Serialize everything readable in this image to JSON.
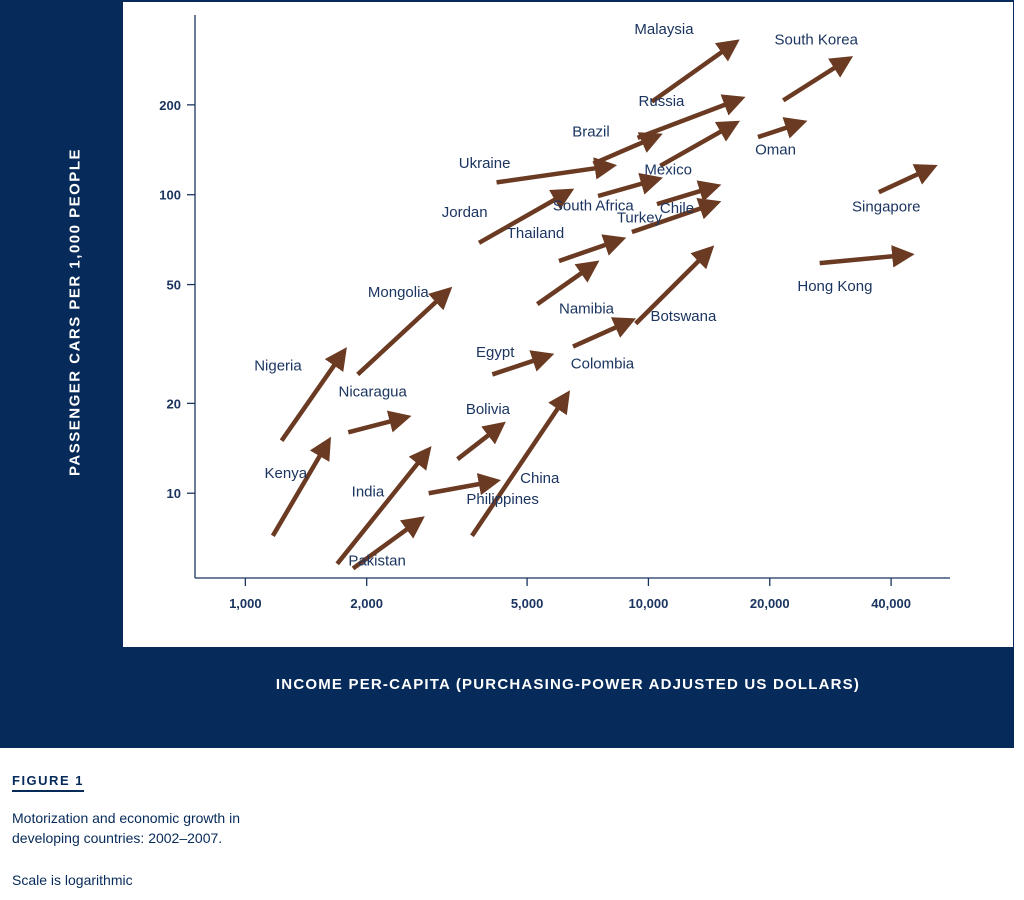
{
  "figure": {
    "label": "FIGURE 1",
    "caption": "Motorization and economic growth in developing countries: 2002–2007.",
    "note": "Scale is logarithmic"
  },
  "chart_data": {
    "type": "scatter",
    "title": "",
    "xlabel": "INCOME PER-CAPITA (PURCHASING-POWER ADJUSTED US DOLLARS)",
    "ylabel": "PASSENGER CARS PER 1,000 PEOPLE",
    "x_scale": "log",
    "y_scale": "log",
    "xlim": [
      750,
      56000
    ],
    "ylim": [
      5.2,
      400
    ],
    "x_ticks": [
      {
        "value": 1000,
        "label": "1,000"
      },
      {
        "value": 2000,
        "label": "2,000"
      },
      {
        "value": 5000,
        "label": "5,000"
      },
      {
        "value": 10000,
        "label": "10,000"
      },
      {
        "value": 20000,
        "label": "20,000"
      },
      {
        "value": 40000,
        "label": "40,000"
      }
    ],
    "y_ticks": [
      {
        "value": 10,
        "label": "10"
      },
      {
        "value": 20,
        "label": "20"
      },
      {
        "value": 50,
        "label": "50"
      },
      {
        "value": 100,
        "label": "100"
      },
      {
        "value": 200,
        "label": "200"
      }
    ],
    "arrow_color": "#6b3a22",
    "series": [
      {
        "name": "Malaysia",
        "x0": 10200,
        "y0": 205,
        "x1": 16500,
        "y1": 325
      },
      {
        "name": "South Korea",
        "x0": 21600,
        "y0": 207,
        "x1": 31500,
        "y1": 286
      },
      {
        "name": "Russia",
        "x0": 9400,
        "y0": 155,
        "x1": 17000,
        "y1": 210
      },
      {
        "name": "Brazil",
        "x0": 7300,
        "y0": 127,
        "x1": 10600,
        "y1": 158
      },
      {
        "name": "Oman",
        "x0": 18700,
        "y0": 156,
        "x1": 24200,
        "y1": 175
      },
      {
        "name": "Mexico",
        "x0": 10700,
        "y0": 125,
        "x1": 16500,
        "y1": 174
      },
      {
        "name": "Ukraine",
        "x0": 4200,
        "y0": 110,
        "x1": 8150,
        "y1": 125
      },
      {
        "name": "South Africa",
        "x0": 7500,
        "y0": 99,
        "x1": 10600,
        "y1": 113
      },
      {
        "name": "Chile",
        "x0": 10500,
        "y0": 93,
        "x1": 14800,
        "y1": 107
      },
      {
        "name": "Singapore",
        "x0": 37300,
        "y0": 102,
        "x1": 51000,
        "y1": 124
      },
      {
        "name": "Jordan",
        "x0": 3800,
        "y0": 69,
        "x1": 6400,
        "y1": 103
      },
      {
        "name": "Turkey",
        "x0": 9100,
        "y0": 75,
        "x1": 14800,
        "y1": 94
      },
      {
        "name": "Thailand",
        "x0": 6000,
        "y0": 60,
        "x1": 8600,
        "y1": 71
      },
      {
        "name": "Hong Kong",
        "x0": 26600,
        "y0": 59,
        "x1": 44600,
        "y1": 63
      },
      {
        "name": "Namibia",
        "x0": 5300,
        "y0": 43,
        "x1": 7400,
        "y1": 59
      },
      {
        "name": "Botswana",
        "x0": 9300,
        "y0": 37,
        "x1": 14300,
        "y1": 66
      },
      {
        "name": "Mongolia",
        "x0": 1900,
        "y0": 25,
        "x1": 3200,
        "y1": 48
      },
      {
        "name": "Colombia",
        "x0": 6500,
        "y0": 31,
        "x1": 9100,
        "y1": 38
      },
      {
        "name": "Egypt",
        "x0": 4100,
        "y0": 25,
        "x1": 5700,
        "y1": 29
      },
      {
        "name": "Nigeria",
        "x0": 1230,
        "y0": 15,
        "x1": 1760,
        "y1": 30
      },
      {
        "name": "Nicaragua",
        "x0": 1800,
        "y0": 16,
        "x1": 2520,
        "y1": 18
      },
      {
        "name": "Bolivia",
        "x0": 3360,
        "y0": 13,
        "x1": 4340,
        "y1": 17
      },
      {
        "name": "China",
        "x0": 3650,
        "y0": 7.2,
        "x1": 6300,
        "y1": 21.5
      },
      {
        "name": "Kenya",
        "x0": 1170,
        "y0": 7.2,
        "x1": 1610,
        "y1": 15
      },
      {
        "name": "India",
        "x0": 1690,
        "y0": 5.8,
        "x1": 2850,
        "y1": 14
      },
      {
        "name": "Philippines",
        "x0": 2850,
        "y0": 10,
        "x1": 4200,
        "y1": 11
      },
      {
        "name": "Pakistan",
        "x0": 1850,
        "y0": 5.6,
        "x1": 2730,
        "y1": 8.2
      }
    ]
  }
}
